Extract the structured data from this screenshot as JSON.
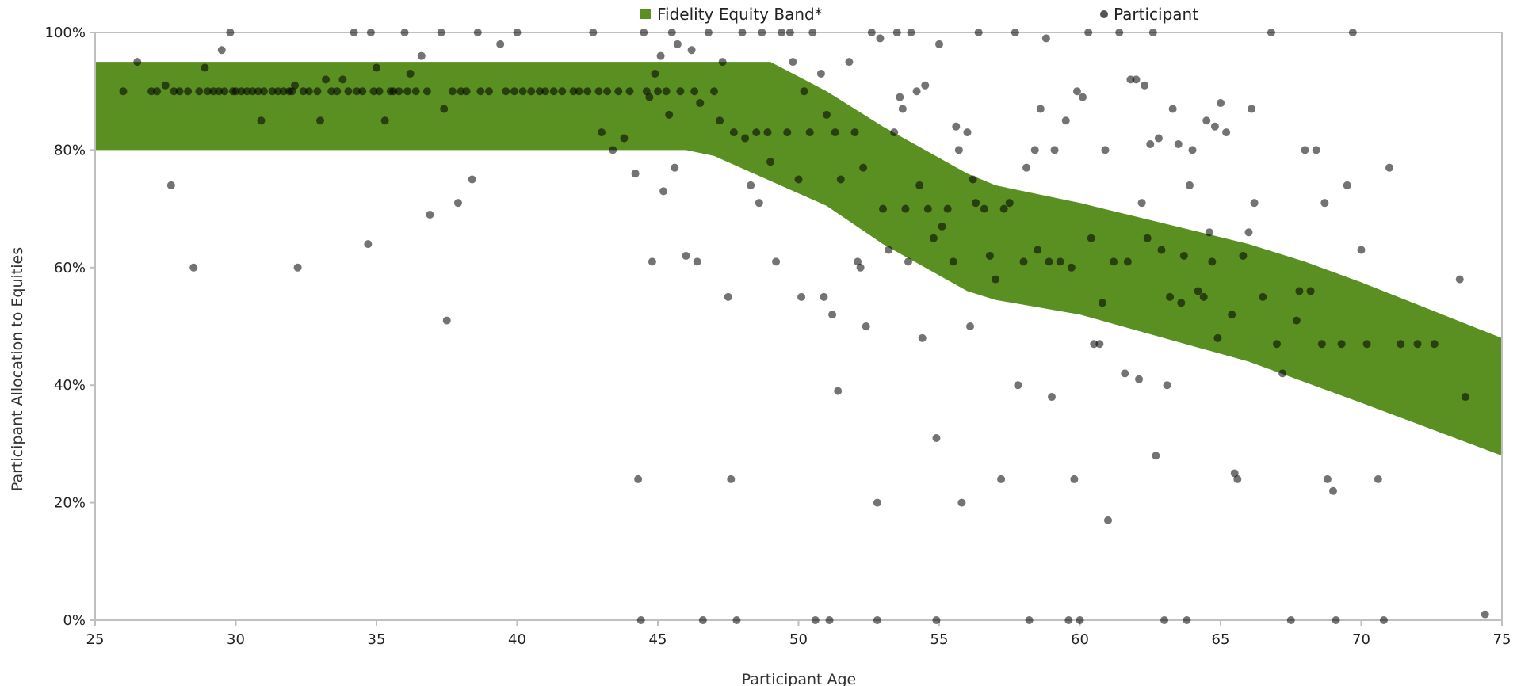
{
  "chart_data": {
    "type": "scatter",
    "xlabel": "Participant Age",
    "ylabel": "Participant Allocation to Equities",
    "xlim": [
      25,
      75
    ],
    "ylim": [
      0,
      100
    ],
    "x_ticks": [
      "25",
      "30",
      "35",
      "40",
      "45",
      "50",
      "55",
      "60",
      "65",
      "70",
      "75"
    ],
    "y_ticks": [
      "0%",
      "20%",
      "40%",
      "60%",
      "80%",
      "100%"
    ],
    "legend_position": "top",
    "grid": "off",
    "colors": {
      "band": "#5a8f22",
      "points": "#000000",
      "axis": "#bfbfbf"
    },
    "band": {
      "name": "Fidelity Equity Band*",
      "upper": [
        [
          25,
          95
        ],
        [
          49,
          95
        ],
        [
          51,
          90
        ],
        [
          53,
          84
        ],
        [
          56,
          76
        ],
        [
          57,
          74
        ],
        [
          60,
          71
        ],
        [
          63,
          67.5
        ],
        [
          66,
          64
        ],
        [
          68,
          61
        ],
        [
          70,
          57.5
        ],
        [
          75,
          48
        ]
      ],
      "lower": [
        [
          25,
          80
        ],
        [
          46,
          80
        ],
        [
          47,
          79
        ],
        [
          51,
          70.5
        ],
        [
          53,
          64
        ],
        [
          56,
          56
        ],
        [
          57,
          54.5
        ],
        [
          60,
          52
        ],
        [
          63,
          48
        ],
        [
          66,
          44
        ],
        [
          68,
          40.5
        ],
        [
          70,
          37
        ],
        [
          75,
          28
        ]
      ]
    },
    "series": [
      {
        "name": "Participant",
        "points": [
          [
            26,
            90
          ],
          [
            26.5,
            95
          ],
          [
            27,
            90
          ],
          [
            27.2,
            90
          ],
          [
            27.5,
            91
          ],
          [
            27.7,
            74
          ],
          [
            27.8,
            90
          ],
          [
            28,
            90
          ],
          [
            28.3,
            90
          ],
          [
            28.5,
            60
          ],
          [
            28.7,
            90
          ],
          [
            28.9,
            94
          ],
          [
            29,
            90
          ],
          [
            29.2,
            90
          ],
          [
            29.4,
            90
          ],
          [
            29.5,
            97
          ],
          [
            29.6,
            90
          ],
          [
            29.8,
            100
          ],
          [
            29.9,
            90
          ],
          [
            30,
            90
          ],
          [
            30.2,
            90
          ],
          [
            30.4,
            90
          ],
          [
            30.6,
            90
          ],
          [
            30.8,
            90
          ],
          [
            30.9,
            85
          ],
          [
            31,
            90
          ],
          [
            31.3,
            90
          ],
          [
            31.5,
            90
          ],
          [
            31.7,
            90
          ],
          [
            31.9,
            90
          ],
          [
            32,
            90
          ],
          [
            32.1,
            91
          ],
          [
            32.2,
            60
          ],
          [
            32.4,
            90
          ],
          [
            32.6,
            90
          ],
          [
            32.9,
            90
          ],
          [
            33,
            85
          ],
          [
            33.2,
            92
          ],
          [
            33.4,
            90
          ],
          [
            33.6,
            90
          ],
          [
            33.8,
            92
          ],
          [
            34,
            90
          ],
          [
            34.2,
            100
          ],
          [
            34.3,
            90
          ],
          [
            34.5,
            90
          ],
          [
            34.7,
            64
          ],
          [
            34.8,
            100
          ],
          [
            34.9,
            90
          ],
          [
            35,
            94
          ],
          [
            35.1,
            90
          ],
          [
            35.3,
            85
          ],
          [
            35.5,
            90
          ],
          [
            35.6,
            90
          ],
          [
            35.8,
            90
          ],
          [
            36,
            100
          ],
          [
            36.1,
            90
          ],
          [
            36.2,
            93
          ],
          [
            36.4,
            90
          ],
          [
            36.6,
            96
          ],
          [
            36.8,
            90
          ],
          [
            36.9,
            69
          ],
          [
            37.3,
            100
          ],
          [
            37.4,
            87
          ],
          [
            37.5,
            51
          ],
          [
            37.7,
            90
          ],
          [
            37.9,
            71
          ],
          [
            38,
            90
          ],
          [
            38.2,
            90
          ],
          [
            38.4,
            75
          ],
          [
            38.6,
            100
          ],
          [
            38.7,
            90
          ],
          [
            39,
            90
          ],
          [
            39.4,
            98
          ],
          [
            39.6,
            90
          ],
          [
            39.9,
            90
          ],
          [
            40,
            100
          ],
          [
            40.2,
            90
          ],
          [
            40.5,
            90
          ],
          [
            40.8,
            90
          ],
          [
            41,
            90
          ],
          [
            41.3,
            90
          ],
          [
            41.6,
            90
          ],
          [
            42,
            90
          ],
          [
            42.2,
            90
          ],
          [
            42.5,
            90
          ],
          [
            42.7,
            100
          ],
          [
            42.9,
            90
          ],
          [
            43,
            83
          ],
          [
            43.2,
            90
          ],
          [
            43.4,
            80
          ],
          [
            43.6,
            90
          ],
          [
            43.8,
            82
          ],
          [
            44,
            90
          ],
          [
            44.2,
            76
          ],
          [
            44.3,
            24
          ],
          [
            44.4,
            0
          ],
          [
            44.5,
            100
          ],
          [
            44.6,
            90
          ],
          [
            44.7,
            89
          ],
          [
            44.8,
            61
          ],
          [
            44.9,
            93
          ],
          [
            45,
            90
          ],
          [
            45.1,
            96
          ],
          [
            45.2,
            73
          ],
          [
            45.3,
            90
          ],
          [
            45.4,
            86
          ],
          [
            45.5,
            100
          ],
          [
            45.6,
            77
          ],
          [
            45.7,
            98
          ],
          [
            45.8,
            90
          ],
          [
            46,
            62
          ],
          [
            46.2,
            97
          ],
          [
            46.3,
            90
          ],
          [
            46.4,
            61
          ],
          [
            46.5,
            88
          ],
          [
            46.6,
            0
          ],
          [
            46.8,
            100
          ],
          [
            47,
            90
          ],
          [
            47.2,
            85
          ],
          [
            47.3,
            95
          ],
          [
            47.5,
            55
          ],
          [
            47.6,
            24
          ],
          [
            47.7,
            83
          ],
          [
            47.8,
            0
          ],
          [
            48,
            100
          ],
          [
            48.1,
            82
          ],
          [
            48.3,
            74
          ],
          [
            48.5,
            83
          ],
          [
            48.6,
            71
          ],
          [
            48.7,
            100
          ],
          [
            48.9,
            83
          ],
          [
            49,
            78
          ],
          [
            49.2,
            61
          ],
          [
            49.4,
            100
          ],
          [
            49.6,
            83
          ],
          [
            49.7,
            100
          ],
          [
            49.8,
            95
          ],
          [
            50,
            75
          ],
          [
            50.1,
            55
          ],
          [
            50.2,
            90
          ],
          [
            50.4,
            83
          ],
          [
            50.5,
            100
          ],
          [
            50.6,
            0
          ],
          [
            50.8,
            93
          ],
          [
            50.9,
            55
          ],
          [
            51,
            86
          ],
          [
            51.1,
            0
          ],
          [
            51.2,
            52
          ],
          [
            51.3,
            83
          ],
          [
            51.4,
            39
          ],
          [
            51.5,
            75
          ],
          [
            51.8,
            95
          ],
          [
            52,
            83
          ],
          [
            52.1,
            61
          ],
          [
            52.2,
            60
          ],
          [
            52.3,
            77
          ],
          [
            52.4,
            50
          ],
          [
            52.6,
            100
          ],
          [
            52.8,
            20
          ],
          [
            52.8,
            0
          ],
          [
            52.9,
            99
          ],
          [
            53,
            70
          ],
          [
            53.2,
            63
          ],
          [
            53.4,
            83
          ],
          [
            53.5,
            100
          ],
          [
            53.6,
            89
          ],
          [
            53.7,
            87
          ],
          [
            53.8,
            70
          ],
          [
            53.9,
            61
          ],
          [
            54,
            100
          ],
          [
            54.2,
            90
          ],
          [
            54.3,
            74
          ],
          [
            54.4,
            48
          ],
          [
            54.5,
            91
          ],
          [
            54.6,
            70
          ],
          [
            54.8,
            65
          ],
          [
            54.9,
            31
          ],
          [
            54.9,
            0
          ],
          [
            55,
            98
          ],
          [
            55.1,
            67
          ],
          [
            55.3,
            70
          ],
          [
            55.5,
            61
          ],
          [
            55.6,
            84
          ],
          [
            55.7,
            80
          ],
          [
            55.8,
            20
          ],
          [
            56,
            83
          ],
          [
            56.1,
            50
          ],
          [
            56.2,
            75
          ],
          [
            56.3,
            71
          ],
          [
            56.4,
            100
          ],
          [
            56.6,
            70
          ],
          [
            56.8,
            62
          ],
          [
            57,
            58
          ],
          [
            57.2,
            24
          ],
          [
            57.3,
            70
          ],
          [
            57.5,
            71
          ],
          [
            57.7,
            100
          ],
          [
            57.8,
            40
          ],
          [
            58,
            61
          ],
          [
            58.1,
            77
          ],
          [
            58.2,
            0
          ],
          [
            58.4,
            80
          ],
          [
            58.5,
            63
          ],
          [
            58.6,
            87
          ],
          [
            58.8,
            99
          ],
          [
            58.9,
            61
          ],
          [
            59,
            38
          ],
          [
            59.1,
            80
          ],
          [
            59.3,
            61
          ],
          [
            59.5,
            85
          ],
          [
            59.6,
            0
          ],
          [
            59.7,
            60
          ],
          [
            59.8,
            24
          ],
          [
            59.9,
            90
          ],
          [
            60,
            0
          ],
          [
            60.1,
            89
          ],
          [
            60.3,
            100
          ],
          [
            60.4,
            65
          ],
          [
            60.5,
            47
          ],
          [
            60.7,
            47
          ],
          [
            60.8,
            54
          ],
          [
            60.9,
            80
          ],
          [
            61,
            17
          ],
          [
            61.2,
            61
          ],
          [
            61.4,
            100
          ],
          [
            61.6,
            42
          ],
          [
            61.7,
            61
          ],
          [
            61.8,
            92
          ],
          [
            62,
            92
          ],
          [
            62.1,
            41
          ],
          [
            62.2,
            71
          ],
          [
            62.3,
            91
          ],
          [
            62.4,
            65
          ],
          [
            62.5,
            81
          ],
          [
            62.6,
            100
          ],
          [
            62.7,
            28
          ],
          [
            62.8,
            82
          ],
          [
            62.9,
            63
          ],
          [
            63,
            0
          ],
          [
            63.1,
            40
          ],
          [
            63.2,
            55
          ],
          [
            63.3,
            87
          ],
          [
            63.5,
            81
          ],
          [
            63.6,
            54
          ],
          [
            63.7,
            62
          ],
          [
            63.8,
            0
          ],
          [
            63.9,
            74
          ],
          [
            64,
            80
          ],
          [
            64.2,
            56
          ],
          [
            64.4,
            55
          ],
          [
            64.5,
            85
          ],
          [
            64.6,
            66
          ],
          [
            64.7,
            61
          ],
          [
            64.8,
            84
          ],
          [
            64.9,
            48
          ],
          [
            65,
            88
          ],
          [
            65.2,
            83
          ],
          [
            65.4,
            52
          ],
          [
            65.5,
            25
          ],
          [
            65.6,
            24
          ],
          [
            65.8,
            62
          ],
          [
            66,
            66
          ],
          [
            66.1,
            87
          ],
          [
            66.2,
            71
          ],
          [
            66.5,
            55
          ],
          [
            66.8,
            100
          ],
          [
            67,
            47
          ],
          [
            67.2,
            42
          ],
          [
            67.5,
            0
          ],
          [
            67.7,
            51
          ],
          [
            67.8,
            56
          ],
          [
            68,
            80
          ],
          [
            68.2,
            56
          ],
          [
            68.4,
            80
          ],
          [
            68.6,
            47
          ],
          [
            68.7,
            71
          ],
          [
            68.8,
            24
          ],
          [
            69,
            22
          ],
          [
            69.1,
            0
          ],
          [
            69.3,
            47
          ],
          [
            69.5,
            74
          ],
          [
            69.7,
            100
          ],
          [
            70,
            63
          ],
          [
            70.2,
            47
          ],
          [
            70.6,
            24
          ],
          [
            70.8,
            0
          ],
          [
            71,
            77
          ],
          [
            71.4,
            47
          ],
          [
            72,
            47
          ],
          [
            72.6,
            47
          ],
          [
            73.5,
            58
          ],
          [
            73.7,
            38
          ],
          [
            74.4,
            1
          ]
        ]
      }
    ]
  }
}
